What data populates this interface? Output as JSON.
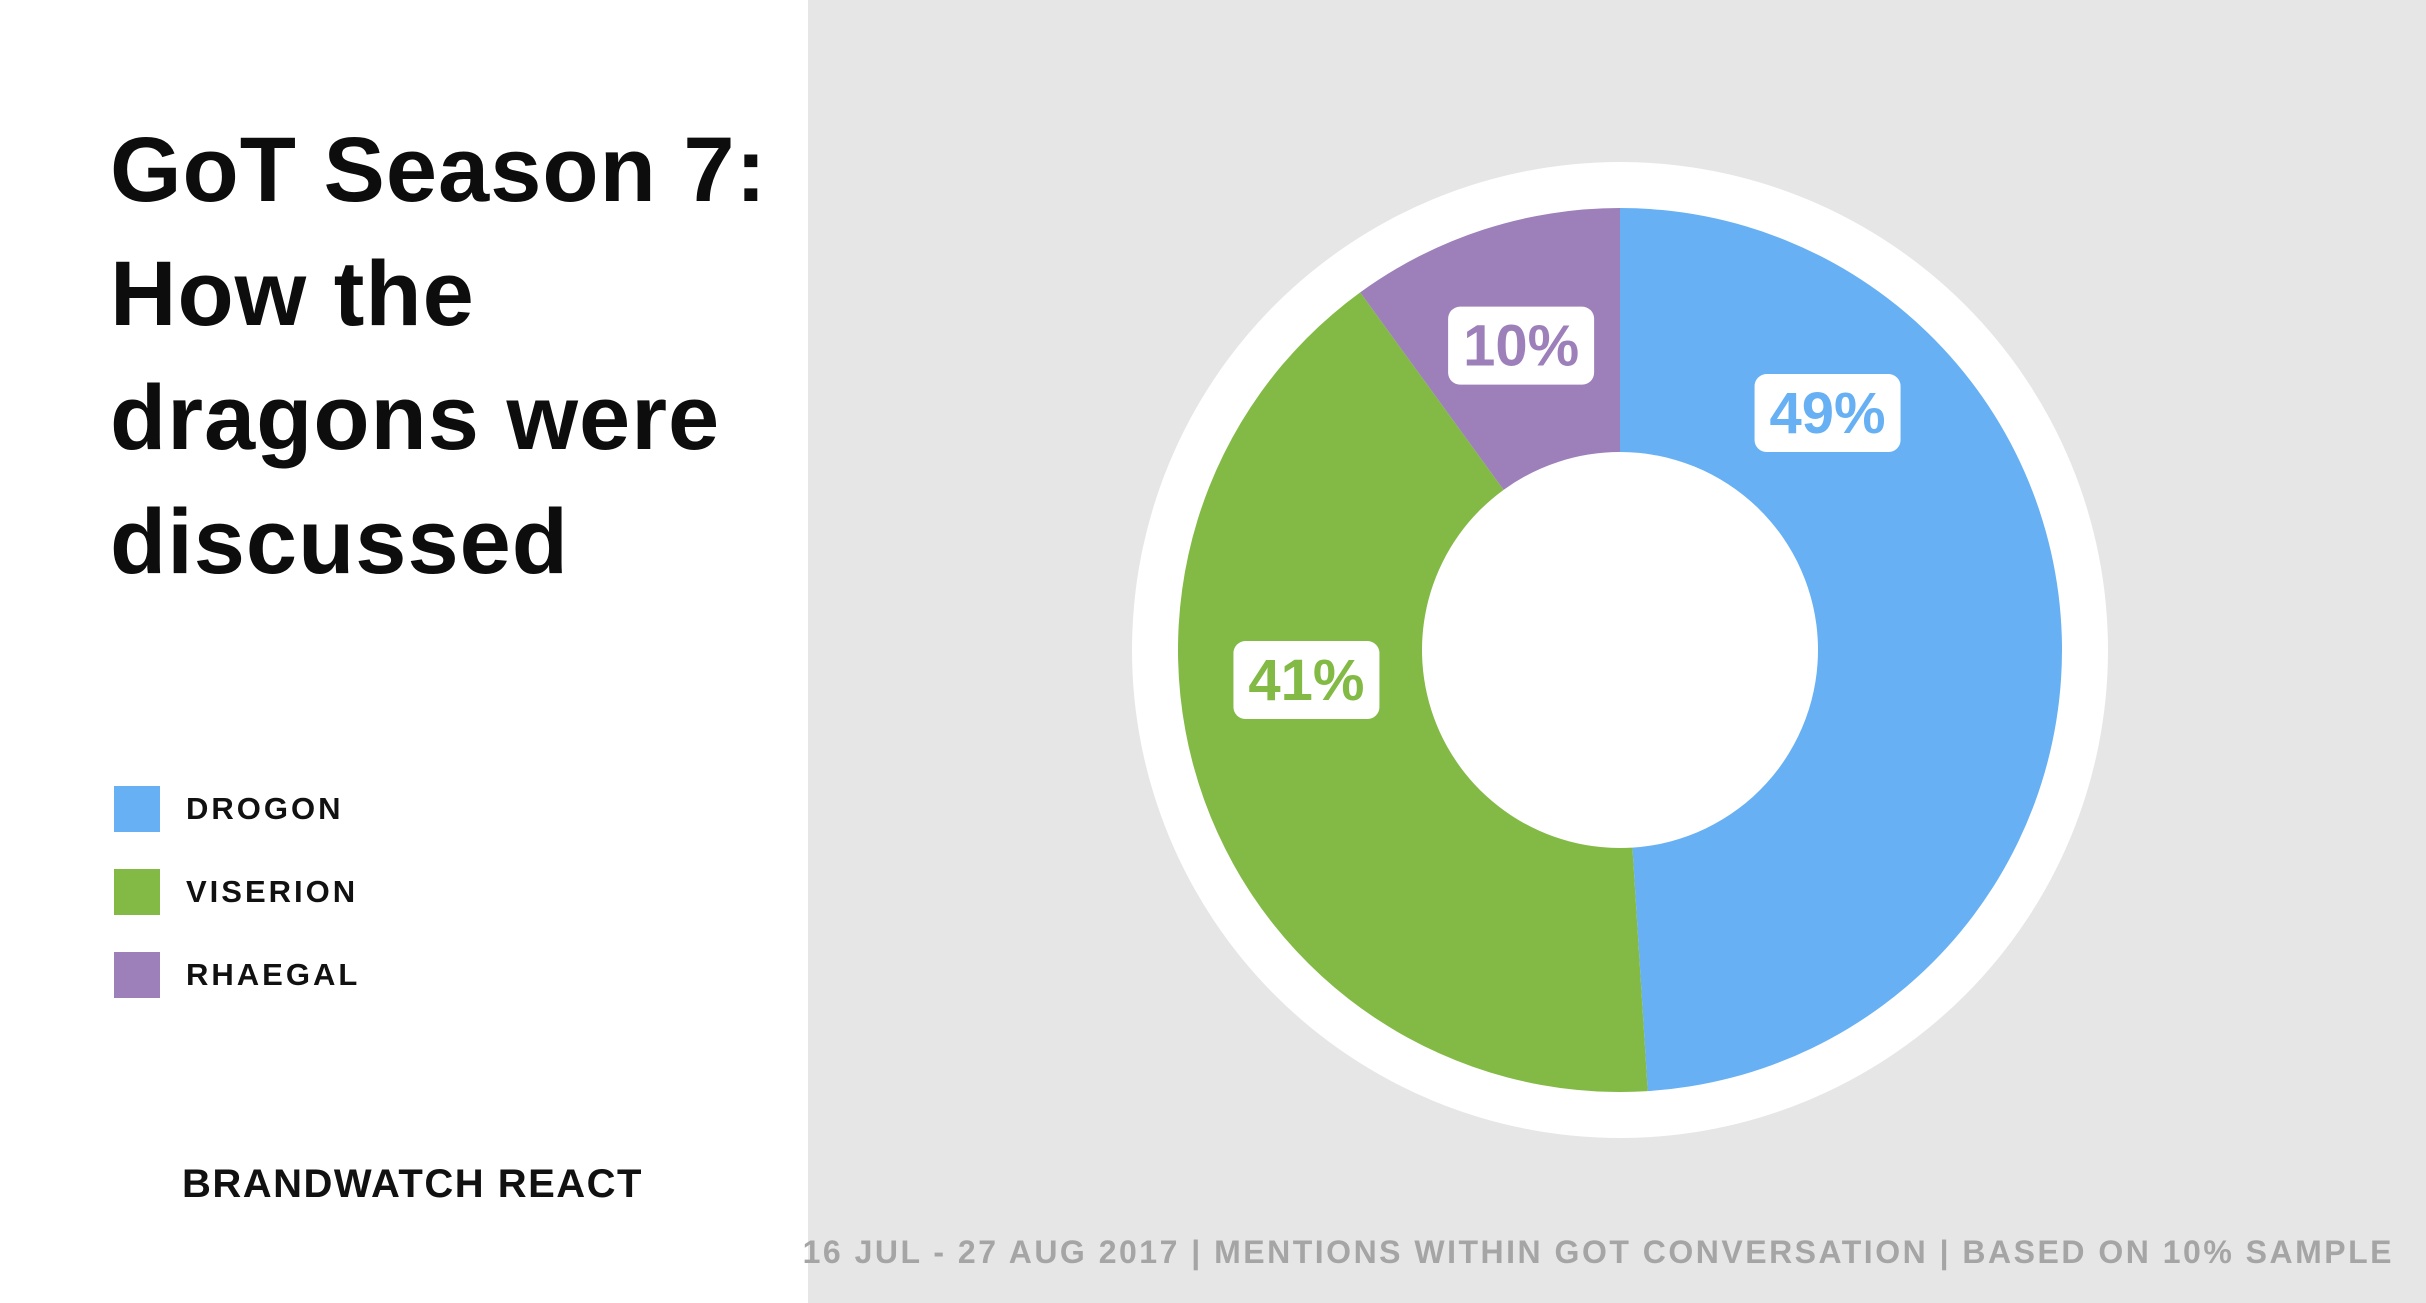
{
  "title_lines": [
    "GoT Season 7:",
    "How the",
    "dragons were",
    "discussed"
  ],
  "brand": "BRANDWATCH REACT",
  "footnote": "16 JUL - 27 AUG 2017 | MENTIONS WITHIN GOT CONVERSATION | BASED ON 10% SAMPLE",
  "chart_data": {
    "type": "pie",
    "style": "donut",
    "title": "GoT Season 7: How the dragons were discussed",
    "legend_position": "left",
    "slices": [
      {
        "name": "DROGON",
        "value": 49,
        "label": "49%",
        "color": "#67b0f4"
      },
      {
        "name": "VISERION",
        "value": 41,
        "label": "41%",
        "color": "#82ba45"
      },
      {
        "name": "RHAEGAL",
        "value": 10,
        "label": "10%",
        "color": "#9d7fba"
      }
    ]
  }
}
